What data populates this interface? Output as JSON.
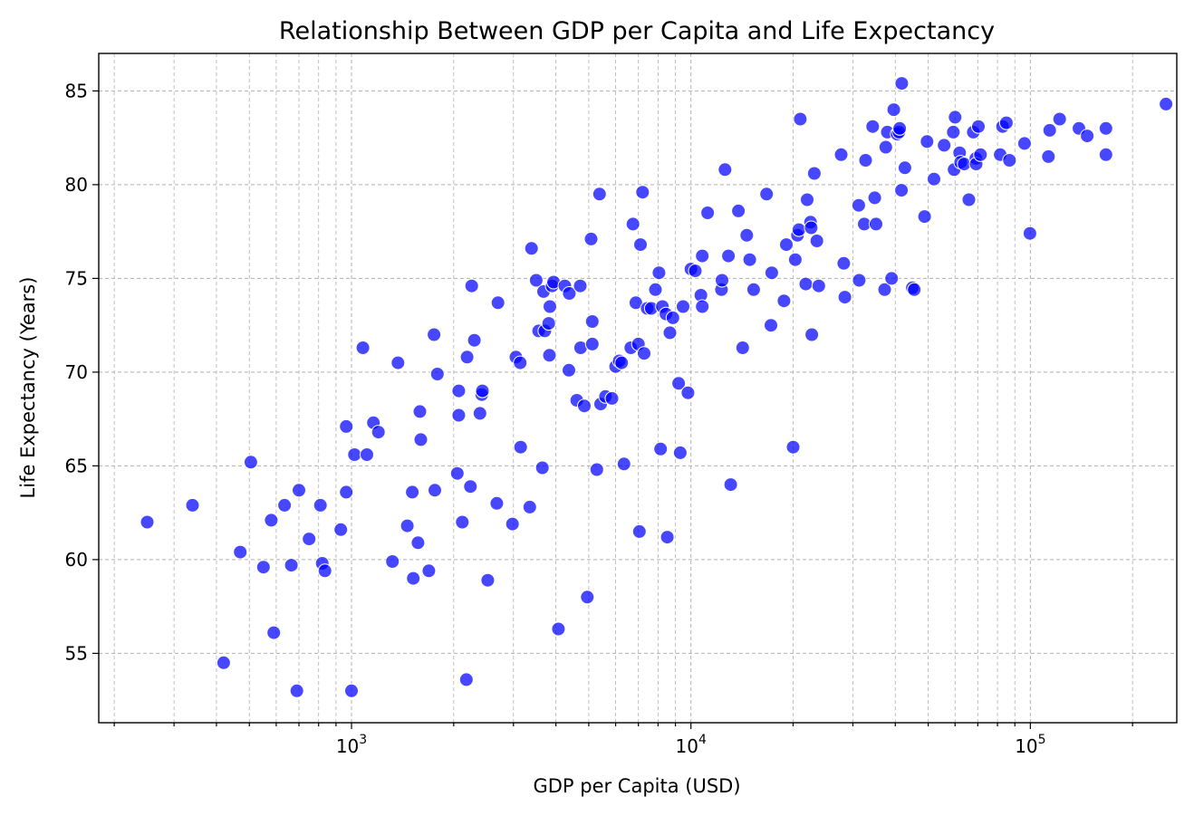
{
  "chart_data": {
    "type": "scatter",
    "title": "Relationship Between GDP per Capita and Life Expectancy",
    "xlabel": "GDP per Capita (USD)",
    "ylabel": "Life Expectancy (Years)",
    "x_scale": "log",
    "xlim": [
      180,
      270000
    ],
    "ylim": [
      51.3,
      87.0
    ],
    "x_ticks": [
      {
        "value": 1000,
        "base": "10",
        "exp": "3"
      },
      {
        "value": 10000,
        "base": "10",
        "exp": "4"
      },
      {
        "value": 100000,
        "base": "10",
        "exp": "5"
      }
    ],
    "y_ticks": [
      {
        "value": 55,
        "label": "55"
      },
      {
        "value": 60,
        "label": "60"
      },
      {
        "value": 65,
        "label": "65"
      },
      {
        "value": 70,
        "label": "70"
      },
      {
        "value": 75,
        "label": "75"
      },
      {
        "value": 80,
        "label": "80"
      },
      {
        "value": 85,
        "label": "85"
      }
    ],
    "grid": true,
    "marker_color": "#0000ff",
    "points": [
      [
        250,
        62.0
      ],
      [
        340,
        62.9
      ],
      [
        420,
        54.5
      ],
      [
        470,
        60.4
      ],
      [
        505,
        65.2
      ],
      [
        550,
        59.6
      ],
      [
        580,
        62.1
      ],
      [
        590,
        56.1
      ],
      [
        635,
        62.9
      ],
      [
        665,
        59.7
      ],
      [
        690,
        53.0
      ],
      [
        700,
        63.7
      ],
      [
        750,
        61.1
      ],
      [
        810,
        62.9
      ],
      [
        820,
        59.8
      ],
      [
        835,
        59.4
      ],
      [
        930,
        61.6
      ],
      [
        965,
        67.1
      ],
      [
        965,
        63.6
      ],
      [
        1000,
        53.0
      ],
      [
        1020,
        65.6
      ],
      [
        1080,
        71.3
      ],
      [
        1110,
        65.6
      ],
      [
        1160,
        67.3
      ],
      [
        1200,
        66.8
      ],
      [
        1320,
        59.9
      ],
      [
        1370,
        70.5
      ],
      [
        1460,
        61.8
      ],
      [
        1510,
        63.6
      ],
      [
        1520,
        59.0
      ],
      [
        1570,
        60.9
      ],
      [
        1590,
        67.9
      ],
      [
        1600,
        66.4
      ],
      [
        1690,
        59.4
      ],
      [
        1750,
        72.0
      ],
      [
        1760,
        63.7
      ],
      [
        1790,
        69.9
      ],
      [
        2050,
        64.6
      ],
      [
        2070,
        69.0
      ],
      [
        2070,
        67.7
      ],
      [
        2120,
        62.0
      ],
      [
        2180,
        53.6
      ],
      [
        2190,
        70.8
      ],
      [
        2240,
        63.9
      ],
      [
        2260,
        74.6
      ],
      [
        2300,
        71.7
      ],
      [
        2390,
        67.8
      ],
      [
        2420,
        68.8
      ],
      [
        2430,
        69.0
      ],
      [
        2520,
        58.9
      ],
      [
        2680,
        63.0
      ],
      [
        2700,
        73.7
      ],
      [
        2980,
        61.9
      ],
      [
        3050,
        70.8
      ],
      [
        3140,
        70.5
      ],
      [
        3150,
        66.0
      ],
      [
        3350,
        62.8
      ],
      [
        3390,
        76.6
      ],
      [
        3500,
        74.9
      ],
      [
        3560,
        72.2
      ],
      [
        3650,
        64.9
      ],
      [
        3680,
        74.3
      ],
      [
        3710,
        72.2
      ],
      [
        3810,
        72.6
      ],
      [
        3830,
        70.9
      ],
      [
        3840,
        73.5
      ],
      [
        3900,
        74.6
      ],
      [
        3940,
        74.8
      ],
      [
        4070,
        56.3
      ],
      [
        4250,
        74.6
      ],
      [
        4370,
        70.1
      ],
      [
        4380,
        74.2
      ],
      [
        4610,
        68.5
      ],
      [
        4720,
        74.6
      ],
      [
        4730,
        71.3
      ],
      [
        4850,
        68.2
      ],
      [
        4950,
        58.0
      ],
      [
        5080,
        77.1
      ],
      [
        5120,
        71.5
      ],
      [
        5120,
        72.7
      ],
      [
        5280,
        64.8
      ],
      [
        5380,
        79.5
      ],
      [
        5420,
        68.3
      ],
      [
        5600,
        68.7
      ],
      [
        5850,
        68.6
      ],
      [
        6000,
        70.3
      ],
      [
        6150,
        70.6
      ],
      [
        6250,
        70.5
      ],
      [
        6350,
        65.1
      ],
      [
        6650,
        71.3
      ],
      [
        6750,
        77.9
      ],
      [
        6880,
        73.7
      ],
      [
        7000,
        71.5
      ],
      [
        7050,
        61.5
      ],
      [
        7100,
        76.8
      ],
      [
        7200,
        79.6
      ],
      [
        7280,
        71.0
      ],
      [
        7430,
        73.4
      ],
      [
        7640,
        73.4
      ],
      [
        7860,
        74.4
      ],
      [
        8050,
        75.3
      ],
      [
        8140,
        65.9
      ],
      [
        8240,
        73.5
      ],
      [
        8440,
        73.1
      ],
      [
        8520,
        61.2
      ],
      [
        8670,
        72.1
      ],
      [
        8850,
        72.9
      ],
      [
        9200,
        69.4
      ],
      [
        9300,
        65.7
      ],
      [
        9480,
        73.5
      ],
      [
        9800,
        68.9
      ],
      [
        10000,
        75.5
      ],
      [
        10300,
        75.4
      ],
      [
        10700,
        74.1
      ],
      [
        10800,
        73.5
      ],
      [
        10800,
        76.2
      ],
      [
        11200,
        78.5
      ],
      [
        12300,
        74.4
      ],
      [
        12350,
        74.9
      ],
      [
        12600,
        80.8
      ],
      [
        12900,
        76.2
      ],
      [
        13100,
        64.0
      ],
      [
        13800,
        78.6
      ],
      [
        14200,
        71.3
      ],
      [
        14600,
        77.3
      ],
      [
        14900,
        76.0
      ],
      [
        15300,
        74.4
      ],
      [
        16700,
        79.5
      ],
      [
        17200,
        72.5
      ],
      [
        17300,
        75.3
      ],
      [
        18800,
        73.8
      ],
      [
        19100,
        76.8
      ],
      [
        20000,
        66.0
      ],
      [
        20300,
        76.0
      ],
      [
        20600,
        77.3
      ],
      [
        20800,
        77.6
      ],
      [
        21000,
        83.5
      ],
      [
        21800,
        74.7
      ],
      [
        22000,
        79.2
      ],
      [
        22500,
        78.0
      ],
      [
        22600,
        77.7
      ],
      [
        22700,
        72.0
      ],
      [
        23100,
        80.6
      ],
      [
        23500,
        77.0
      ],
      [
        23800,
        74.6
      ],
      [
        27700,
        81.6
      ],
      [
        28200,
        75.8
      ],
      [
        28400,
        74.0
      ],
      [
        31200,
        78.9
      ],
      [
        31300,
        74.9
      ],
      [
        32400,
        77.9
      ],
      [
        32700,
        81.3
      ],
      [
        34300,
        83.1
      ],
      [
        34800,
        79.3
      ],
      [
        35100,
        77.9
      ],
      [
        37200,
        74.4
      ],
      [
        37500,
        82.0
      ],
      [
        37900,
        82.8
      ],
      [
        39000,
        75.0
      ],
      [
        39600,
        84.0
      ],
      [
        40500,
        82.7
      ],
      [
        41000,
        82.8
      ],
      [
        41200,
        83.0
      ],
      [
        41700,
        79.7
      ],
      [
        41800,
        85.4
      ],
      [
        42700,
        80.9
      ],
      [
        44900,
        74.5
      ],
      [
        45500,
        74.4
      ],
      [
        48800,
        78.3
      ],
      [
        49600,
        82.3
      ],
      [
        52000,
        80.3
      ],
      [
        55700,
        82.1
      ],
      [
        59300,
        82.8
      ],
      [
        59600,
        80.8
      ],
      [
        60000,
        83.6
      ],
      [
        61900,
        81.7
      ],
      [
        62300,
        81.2
      ],
      [
        63800,
        81.1
      ],
      [
        65900,
        79.2
      ],
      [
        67900,
        82.8
      ],
      [
        69100,
        81.4
      ],
      [
        69200,
        81.1
      ],
      [
        70300,
        83.1
      ],
      [
        71300,
        81.6
      ],
      [
        81500,
        81.6
      ],
      [
        82800,
        83.1
      ],
      [
        85000,
        83.3
      ],
      [
        86800,
        81.3
      ],
      [
        96100,
        82.2
      ],
      [
        99700,
        77.4
      ],
      [
        113000,
        81.5
      ],
      [
        114000,
        82.9
      ],
      [
        122000,
        83.5
      ],
      [
        139000,
        83.0
      ],
      [
        147000,
        82.6
      ],
      [
        167000,
        83.0
      ],
      [
        167000,
        81.6
      ],
      [
        251000,
        84.3
      ]
    ]
  }
}
